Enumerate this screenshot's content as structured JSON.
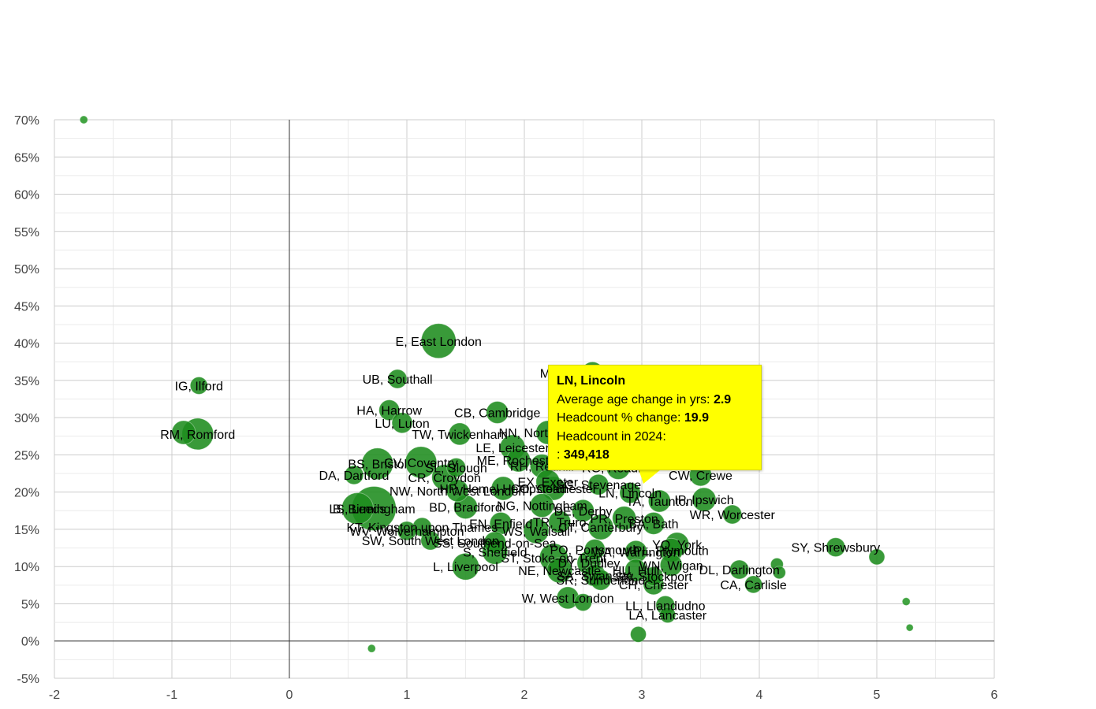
{
  "chart_data": {
    "type": "scatter",
    "subtype": "bubble",
    "title": "",
    "xlabel": "Average age change in yrs",
    "ylabel": "Headcount % change",
    "xlim": [
      -2,
      6
    ],
    "ylim": [
      -5,
      70
    ],
    "x_ticks": [
      "-2",
      "-1",
      "0",
      "1",
      "2",
      "3",
      "4",
      "5",
      "6"
    ],
    "y_ticks": [
      "-5%",
      "0%",
      "5%",
      "10%",
      "15%",
      "20%",
      "25%",
      "30%",
      "35%",
      "40%",
      "45%",
      "50%",
      "55%",
      "60%",
      "65%",
      "70%"
    ],
    "grid": true,
    "legend": "none",
    "bubble_color": "#1e8c1e",
    "points": [
      {
        "label": "",
        "x": -1.75,
        "y": 70,
        "r": 5
      },
      {
        "label": "",
        "x": 0.7,
        "y": -1,
        "r": 5
      },
      {
        "label": "",
        "x": 5.25,
        "y": 5.3,
        "r": 5
      },
      {
        "label": "",
        "x": 5.28,
        "y": 1.8,
        "r": 4.5
      },
      {
        "label": "",
        "x": 5.0,
        "y": 11.3,
        "r": 10
      },
      {
        "label": "",
        "x": 4.15,
        "y": 10.3,
        "r": 8
      },
      {
        "label": "",
        "x": 4.17,
        "y": 9.2,
        "r": 8
      },
      {
        "label": "",
        "x": 2.97,
        "y": 0.9,
        "r": 10
      },
      {
        "label": "",
        "x": 2.5,
        "y": 5.2,
        "r": 11
      },
      {
        "label": "",
        "x": -0.9,
        "y": 28.0,
        "r": 15
      },
      {
        "label": "RM, Romford",
        "x": -0.78,
        "y": 27.8,
        "r": 20
      },
      {
        "label": "IG, Ilford",
        "x": -0.77,
        "y": 34.3,
        "r": 11
      },
      {
        "label": "E, East London",
        "x": 1.27,
        "y": 40.3,
        "r": 22
      },
      {
        "label": "UB, Southall",
        "x": 0.92,
        "y": 35.2,
        "r": 12
      },
      {
        "label": "HA, Harrow",
        "x": 0.85,
        "y": 31.0,
        "r": 13
      },
      {
        "label": "LU, Luton",
        "x": 0.96,
        "y": 29.3,
        "r": 13
      },
      {
        "label": "CB, Cambridge",
        "x": 1.77,
        "y": 30.7,
        "r": 14
      },
      {
        "label": "TW, Twickenham",
        "x": 1.45,
        "y": 27.8,
        "r": 14
      },
      {
        "label": "NN, Northampton",
        "x": 2.2,
        "y": 28.0,
        "r": 15
      },
      {
        "label": "MK, Milton Keynes",
        "x": 2.58,
        "y": 36.0,
        "r": 14
      },
      {
        "label": "LE, Leicester",
        "x": 1.9,
        "y": 26.0,
        "r": 16
      },
      {
        "label": "ME, Rochester",
        "x": 1.95,
        "y": 24.3,
        "r": 15
      },
      {
        "label": "RH, Redhill",
        "x": 2.15,
        "y": 23.5,
        "r": 15
      },
      {
        "label": "BS, Bristol",
        "x": 0.75,
        "y": 23.8,
        "r": 20
      },
      {
        "label": "CV, Coventry",
        "x": 1.12,
        "y": 24.0,
        "r": 20
      },
      {
        "label": "SL, Slough",
        "x": 1.42,
        "y": 23.3,
        "r": 12
      },
      {
        "label": "DA, Dartford",
        "x": 0.55,
        "y": 22.3,
        "r": 12
      },
      {
        "label": "CR, Croydon",
        "x": 1.32,
        "y": 22.0,
        "r": 16
      },
      {
        "label": "NW, North West London",
        "x": 1.43,
        "y": 20.2,
        "r": 14
      },
      {
        "label": "HP, Hemel Hempstead",
        "x": 1.82,
        "y": 20.5,
        "r": 15
      },
      {
        "label": "CO, Colchester",
        "x": 2.25,
        "y": 20.5,
        "r": 15
      },
      {
        "label": "EX, Exeter",
        "x": 2.2,
        "y": 21.4,
        "r": 15
      },
      {
        "label": "SG, Stevenage",
        "x": 2.63,
        "y": 21.0,
        "r": 13
      },
      {
        "label": "RG, Reading",
        "x": 2.8,
        "y": 23.3,
        "r": 15
      },
      {
        "label": "CW, Crewe",
        "x": 3.5,
        "y": 22.3,
        "r": 14
      },
      {
        "label": "LN, Lincoln",
        "x": 2.9,
        "y": 19.9,
        "r": 14,
        "headcount_2024": "349,418",
        "highlighted": true
      },
      {
        "label": "LS, Leeds",
        "x": 0.58,
        "y": 17.8,
        "r": 20
      },
      {
        "label": "B, Birmingham",
        "x": 0.72,
        "y": 17.8,
        "r": 28
      },
      {
        "label": "BD, Bradford",
        "x": 1.5,
        "y": 18.0,
        "r": 15
      },
      {
        "label": "NG, Nottingham",
        "x": 2.15,
        "y": 18.2,
        "r": 15
      },
      {
        "label": "DE, Derby",
        "x": 2.5,
        "y": 17.5,
        "r": 14
      },
      {
        "label": "TA, Taunton",
        "x": 3.15,
        "y": 18.8,
        "r": 14
      },
      {
        "label": "IP, Ipswich",
        "x": 3.53,
        "y": 19.0,
        "r": 15
      },
      {
        "label": "WR, Worcester",
        "x": 3.77,
        "y": 17.0,
        "r": 12
      },
      {
        "label": "KT, Kingston upon Thames",
        "x": 1.13,
        "y": 15.3,
        "r": 12
      },
      {
        "label": "EN, Enfield",
        "x": 1.8,
        "y": 15.8,
        "r": 14
      },
      {
        "label": "WV, Wolverhampton",
        "x": 1.0,
        "y": 14.8,
        "r": 12
      },
      {
        "label": "SW, South West London",
        "x": 1.2,
        "y": 13.5,
        "r": 12
      },
      {
        "label": "SS, Southend-on-Sea",
        "x": 1.75,
        "y": 13.2,
        "r": 14
      },
      {
        "label": "WS, Walsall",
        "x": 2.1,
        "y": 14.8,
        "r": 16
      },
      {
        "label": "TR, Truro",
        "x": 2.3,
        "y": 16.0,
        "r": 14
      },
      {
        "label": "PR, Preston",
        "x": 2.85,
        "y": 16.5,
        "r": 15
      },
      {
        "label": "BA, Bath",
        "x": 3.1,
        "y": 15.8,
        "r": 14
      },
      {
        "label": "CT, Canterbury",
        "x": 2.65,
        "y": 15.3,
        "r": 16
      },
      {
        "label": "S, Sheffield",
        "x": 1.75,
        "y": 12.0,
        "r": 16
      },
      {
        "label": "L, Liverpool",
        "x": 1.5,
        "y": 10.0,
        "r": 17
      },
      {
        "label": "ST, Stoke-on-Trent",
        "x": 2.25,
        "y": 11.2,
        "r": 18
      },
      {
        "label": "NE, Newcastle",
        "x": 2.3,
        "y": 9.5,
        "r": 16
      },
      {
        "label": "DY, Dudley",
        "x": 2.55,
        "y": 10.5,
        "r": 15
      },
      {
        "label": "SA, Swansea",
        "x": 2.6,
        "y": 8.8,
        "r": 14
      },
      {
        "label": "SR, Sunderland",
        "x": 2.65,
        "y": 8.2,
        "r": 13
      },
      {
        "label": "PO, Portsmouth",
        "x": 2.6,
        "y": 12.3,
        "r": 13
      },
      {
        "label": "WA, Warrington",
        "x": 2.95,
        "y": 12.0,
        "r": 14
      },
      {
        "label": "YO, York",
        "x": 3.3,
        "y": 13.0,
        "r": 15
      },
      {
        "label": "PL, Plymouth",
        "x": 3.25,
        "y": 12.2,
        "r": 15
      },
      {
        "label": "WN, Wigan",
        "x": 3.25,
        "y": 10.2,
        "r": 14
      },
      {
        "label": "HU, Hull",
        "x": 2.95,
        "y": 9.5,
        "r": 14
      },
      {
        "label": "SK, Stockport",
        "x": 3.1,
        "y": 8.7,
        "r": 12
      },
      {
        "label": "CH, Chester",
        "x": 3.1,
        "y": 7.6,
        "r": 13
      },
      {
        "label": "DL, Darlington",
        "x": 3.83,
        "y": 9.6,
        "r": 12
      },
      {
        "label": "CA, Carlisle",
        "x": 3.95,
        "y": 7.6,
        "r": 11
      },
      {
        "label": "SY, Shrewsbury",
        "x": 4.65,
        "y": 12.6,
        "r": 12
      },
      {
        "label": "W, West London",
        "x": 2.37,
        "y": 5.8,
        "r": 14
      },
      {
        "label": "LL, Llandudno",
        "x": 3.2,
        "y": 4.8,
        "r": 12
      },
      {
        "label": "LA, Lancaster",
        "x": 3.22,
        "y": 3.5,
        "r": 10
      }
    ]
  },
  "tooltip": {
    "title": "LN, Lincoln",
    "age_label": "Average age change in yrs: ",
    "age_value": "2.9",
    "headcount_change_label": "Headcount % change: ",
    "headcount_change_value": "19.9",
    "headcount_label": "Headcount in 2024:",
    "headcount_prefix": ": ",
    "headcount_value": "349,418"
  }
}
